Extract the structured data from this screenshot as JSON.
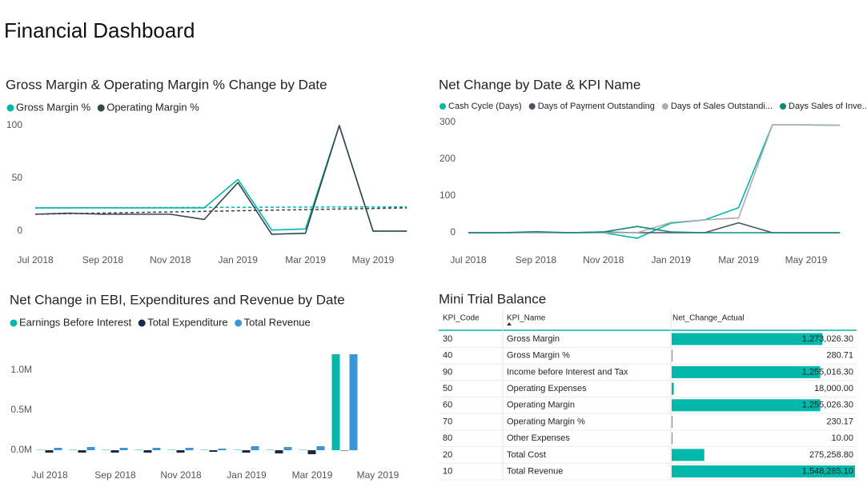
{
  "title": "Financial Dashboard",
  "chart_data": [
    {
      "type": "line",
      "title": "Gross Margin & Operating Margin % Change by Date",
      "categories": [
        "Jul 2018",
        null,
        "Sep 2018",
        null,
        "Nov 2018",
        null,
        "Jan 2019",
        null,
        "Mar 2019",
        null,
        "May 2019",
        null
      ],
      "series": [
        {
          "name": "Gross Margin %",
          "color": "#01b8aa",
          "values": [
            22,
            22,
            22,
            22,
            22,
            22,
            49,
            1,
            2,
            100,
            0,
            0
          ],
          "trend": [
            22,
            23
          ]
        },
        {
          "name": "Operating Margin %",
          "color": "#374649",
          "values": [
            16,
            17,
            16,
            16,
            16,
            11,
            46,
            -3,
            -2,
            100,
            0,
            0
          ],
          "trend": [
            16,
            22
          ]
        }
      ],
      "ylim": [
        -10,
        105
      ],
      "yticks": [
        0,
        50,
        100
      ],
      "grid": false
    },
    {
      "type": "line",
      "title": "Net Change by Date & KPI Name",
      "categories": [
        "Jul 2018",
        null,
        "Sep 2018",
        null,
        "Nov 2018",
        null,
        "Jan 2019",
        null,
        "Mar 2019",
        null,
        "May 2019",
        null
      ],
      "series": [
        {
          "name": "Cash Cycle (Days)",
          "color": "#01b8aa",
          "values": [
            0,
            0,
            1,
            0,
            0,
            -15,
            26,
            35,
            68,
            293,
            293,
            292
          ]
        },
        {
          "name": "Days of Payment Outstanding",
          "color": "#4a5560",
          "values": [
            0,
            0,
            0,
            0,
            2,
            0,
            0,
            0,
            27,
            0,
            0,
            0
          ]
        },
        {
          "name": "Days of Sales Outstandi...",
          "color": "#a9adb0",
          "values": [
            0,
            0,
            0,
            0,
            0,
            0,
            28,
            35,
            40,
            293,
            293,
            292
          ]
        },
        {
          "name": "Days Sales of Inve...",
          "color": "#14877f",
          "values": [
            0,
            0,
            3,
            0,
            2,
            17,
            2,
            0,
            0,
            0,
            0,
            0
          ]
        }
      ],
      "ylim": [
        -20,
        305
      ],
      "yticks": [
        0,
        100,
        200,
        300
      ],
      "grid": false
    },
    {
      "type": "bar",
      "title": "Net Change in EBI, Expenditures and Revenue by Date",
      "categories": [
        "Jul 2018",
        null,
        "Sep 2018",
        null,
        "Nov 2018",
        null,
        "Jan 2019",
        null,
        "Mar 2019",
        null,
        "May 2019"
      ],
      "series": [
        {
          "name": "Earnings Before Interest",
          "color": "#01b8aa",
          "values": [
            5000,
            5000,
            5000,
            5000,
            5000,
            5000,
            5000,
            5000,
            5000,
            1200000,
            null
          ]
        },
        {
          "name": "Total Expenditure",
          "color": "#1b2a4a",
          "values": [
            -30000,
            -30000,
            -30000,
            -30000,
            -30000,
            -20000,
            -30000,
            -40000,
            -50000,
            -5000,
            null
          ]
        },
        {
          "name": "Total Revenue",
          "color": "#3b95d9",
          "values": [
            30000,
            40000,
            30000,
            30000,
            30000,
            20000,
            50000,
            40000,
            50000,
            1200000,
            null
          ]
        }
      ],
      "ylim": [
        -100000,
        1250000
      ],
      "yticks": [
        {
          "value": 0,
          "label": "0.0M"
        },
        {
          "value": 500000,
          "label": "0.5M"
        },
        {
          "value": 1000000,
          "label": "1.0M"
        }
      ],
      "grid": false
    }
  ],
  "table": {
    "title": "Mini Trial Balance",
    "bar_color": "#01b8aa",
    "columns": [
      "KPI_Code",
      "KPI_Name",
      "Net_Change_Actual"
    ],
    "rows": [
      [
        30,
        "Gross Margin",
        {
          "value": 1273026.3,
          "label": "1,273,026.30"
        }
      ],
      [
        40,
        "Gross Margin %",
        {
          "value": 280.71,
          "label": "280.71"
        }
      ],
      [
        90,
        "Income before Interest and Tax",
        {
          "value": 1255016.3,
          "label": "1,255,016.30"
        }
      ],
      [
        50,
        "Operating Expenses",
        {
          "value": 18000.0,
          "label": "18,000.00"
        }
      ],
      [
        60,
        "Operating Margin",
        {
          "value": 1255026.3,
          "label": "1,255,026.30"
        }
      ],
      [
        70,
        "Operating Margin %",
        {
          "value": 230.17,
          "label": "230.17"
        }
      ],
      [
        80,
        "Other Expenses",
        {
          "value": 10.0,
          "label": "10.00"
        }
      ],
      [
        20,
        "Total Cost",
        {
          "value": 275258.8,
          "label": "275,258.80"
        }
      ],
      [
        10,
        "Total Revenue",
        {
          "value": 1548285.1,
          "label": "1,548,285.10"
        }
      ]
    ]
  }
}
